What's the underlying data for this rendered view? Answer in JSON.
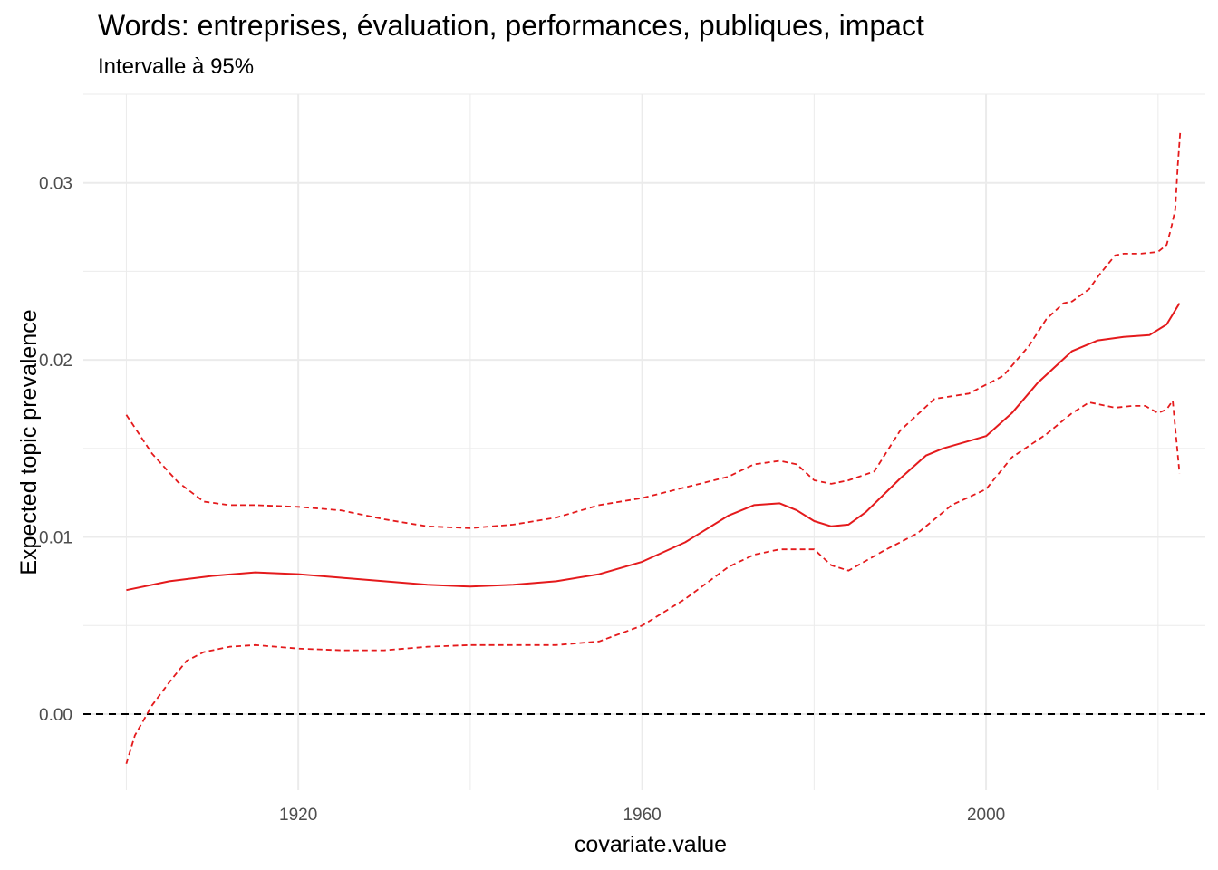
{
  "chart_data": {
    "type": "line",
    "title": "Words: entreprises, évaluation, performances, publiques, impact",
    "subtitle": "Intervalle à 95%",
    "xlabel": "covariate.value",
    "ylabel": "Expected topic prevalence",
    "xlim": [
      1895,
      2025.5
    ],
    "ylim": [
      -0.0043,
      0.035
    ],
    "x_ticks": [
      1920,
      1960,
      2000
    ],
    "x_tick_labels": [
      "1920",
      "1960",
      "2000"
    ],
    "y_ticks": [
      0.0,
      0.01,
      0.02,
      0.03
    ],
    "y_tick_labels": [
      "0.00",
      "0.01",
      "0.02",
      "0.03"
    ],
    "grid": true,
    "reference_line": {
      "y": 0.0,
      "style": "dashed",
      "color": "#000000"
    },
    "series_color": "#e41a1c",
    "series": [
      {
        "role": "estimate",
        "style": "solid",
        "x": [
          1900,
          1905,
          1910,
          1915,
          1920,
          1925,
          1930,
          1935,
          1940,
          1945,
          1950,
          1955,
          1960,
          1965,
          1970,
          1973,
          1976,
          1978,
          1980,
          1982,
          1984,
          1986,
          1990,
          1993,
          1995,
          2000,
          2003,
          2006,
          2010,
          2013,
          2016,
          2019,
          2021,
          2022.5
        ],
        "values": [
          0.007,
          0.0075,
          0.0078,
          0.008,
          0.0079,
          0.0077,
          0.0075,
          0.0073,
          0.0072,
          0.0073,
          0.0075,
          0.0079,
          0.0086,
          0.0097,
          0.0112,
          0.0118,
          0.0119,
          0.0115,
          0.0109,
          0.0106,
          0.0107,
          0.0114,
          0.0133,
          0.0146,
          0.015,
          0.0157,
          0.017,
          0.0187,
          0.0205,
          0.0211,
          0.0213,
          0.0214,
          0.022,
          0.0232
        ]
      },
      {
        "role": "upper-bound",
        "style": "dashed",
        "x": [
          1900,
          1903,
          1906,
          1909,
          1912,
          1915,
          1920,
          1925,
          1930,
          1935,
          1940,
          1945,
          1950,
          1955,
          1960,
          1965,
          1970,
          1973,
          1976,
          1978,
          1980,
          1982,
          1984,
          1987,
          1990,
          1994,
          1998,
          2002,
          2005,
          2007,
          2009,
          2010,
          2012,
          2013,
          2015,
          2016,
          2018,
          2020,
          2021,
          2021.5,
          2022,
          2022.3,
          2022.6
        ],
        "values": [
          0.0169,
          0.0147,
          0.0131,
          0.012,
          0.0118,
          0.0118,
          0.0117,
          0.0115,
          0.011,
          0.0106,
          0.0105,
          0.0107,
          0.0111,
          0.0118,
          0.0122,
          0.0128,
          0.0134,
          0.0141,
          0.0143,
          0.0141,
          0.0132,
          0.013,
          0.0132,
          0.0137,
          0.016,
          0.0178,
          0.0181,
          0.0191,
          0.0208,
          0.0223,
          0.0232,
          0.0233,
          0.024,
          0.0247,
          0.0259,
          0.026,
          0.026,
          0.0261,
          0.0265,
          0.0274,
          0.0285,
          0.031,
          0.033
        ]
      },
      {
        "role": "lower-bound",
        "style": "dashed",
        "x": [
          1900,
          1901,
          1903,
          1905,
          1907,
          1909,
          1912,
          1915,
          1920,
          1925,
          1930,
          1935,
          1940,
          1945,
          1950,
          1955,
          1960,
          1965,
          1970,
          1973,
          1976,
          1980,
          1982,
          1984,
          1988,
          1992,
          1996,
          2000,
          2003,
          2007,
          2010,
          2012,
          2015,
          2017,
          2018.5,
          2020,
          2021,
          2021.7,
          2022.5
        ],
        "values": [
          -0.0028,
          -0.0012,
          0.0005,
          0.0018,
          0.003,
          0.0035,
          0.0038,
          0.0039,
          0.0037,
          0.0036,
          0.0036,
          0.0038,
          0.0039,
          0.0039,
          0.0039,
          0.0041,
          0.005,
          0.0065,
          0.0083,
          0.009,
          0.0093,
          0.0093,
          0.0084,
          0.0081,
          0.0092,
          0.0102,
          0.0118,
          0.0127,
          0.0145,
          0.0158,
          0.017,
          0.0176,
          0.0173,
          0.0174,
          0.0174,
          0.017,
          0.0172,
          0.0177,
          0.0136
        ]
      }
    ]
  }
}
